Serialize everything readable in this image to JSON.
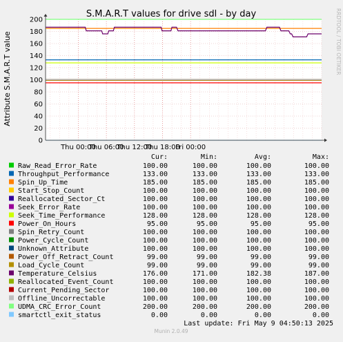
{
  "chart_data": {
    "type": "line",
    "title": "S.M.A.R.T values for drive sdl - by day",
    "ylabel": "Attribute S.M.A.R.T value",
    "side_label": "RRDTOOL / TOBI OETIKER",
    "ylim": [
      0,
      200
    ],
    "yticks": [
      "0",
      "20",
      "40",
      "60",
      "80",
      "100",
      "120",
      "140",
      "160",
      "180",
      "200"
    ],
    "xlim": [
      "Wed 17:00",
      "Fri 09:00"
    ],
    "xticks": [
      {
        "label": "Thu 00:00",
        "t": 7
      },
      {
        "label": "Thu 06:00",
        "t": 13
      },
      {
        "label": "Thu 12:00",
        "t": 19
      },
      {
        "label": "Thu 18:00",
        "t": 25
      },
      {
        "label": "Fri 00:00",
        "t": 31
      }
    ],
    "x_max": 40,
    "grid": true,
    "headers": {
      "cur": "Cur:",
      "min": "Min:",
      "avg": "Avg:",
      "max": "Max:"
    },
    "series": [
      {
        "name": "Raw_Read_Error_Rate",
        "color": "#00cc00",
        "value": 100,
        "cur": "100.00",
        "min": "100.00",
        "avg": "100.00",
        "max": "100.00"
      },
      {
        "name": "Throughput_Performance",
        "color": "#0066b3",
        "value": 133,
        "cur": "133.00",
        "min": "133.00",
        "avg": "133.00",
        "max": "133.00"
      },
      {
        "name": "Spin_Up_Time",
        "color": "#ff8000",
        "value": 185,
        "cur": "185.00",
        "min": "185.00",
        "avg": "185.00",
        "max": "185.00"
      },
      {
        "name": "Start_Stop_Count",
        "color": "#ffcc00",
        "value": 100,
        "cur": "100.00",
        "min": "100.00",
        "avg": "100.00",
        "max": "100.00"
      },
      {
        "name": "Reallocated_Sector_Ct",
        "color": "#330099",
        "value": 100,
        "cur": "100.00",
        "min": "100.00",
        "avg": "100.00",
        "max": "100.00"
      },
      {
        "name": "Seek_Error_Rate",
        "color": "#990099",
        "value": 100,
        "cur": "100.00",
        "min": "100.00",
        "avg": "100.00",
        "max": "100.00"
      },
      {
        "name": "Seek_Time_Performance",
        "color": "#ccff00",
        "value": 128,
        "cur": "128.00",
        "min": "128.00",
        "avg": "128.00",
        "max": "128.00"
      },
      {
        "name": "Power_On_Hours",
        "color": "#ff0000",
        "value": 95,
        "cur": "95.00",
        "min": "95.00",
        "avg": "95.00",
        "max": "95.00"
      },
      {
        "name": "Spin_Retry_Count",
        "color": "#808080",
        "value": 100,
        "cur": "100.00",
        "min": "100.00",
        "avg": "100.00",
        "max": "100.00"
      },
      {
        "name": "Power_Cycle_Count",
        "color": "#008f00",
        "value": 100,
        "cur": "100.00",
        "min": "100.00",
        "avg": "100.00",
        "max": "100.00"
      },
      {
        "name": "Unknown_Attribute",
        "color": "#00487d",
        "value": 100,
        "cur": "100.00",
        "min": "100.00",
        "avg": "100.00",
        "max": "100.00"
      },
      {
        "name": "Power_Off_Retract_Count",
        "color": "#b35a00",
        "value": 99,
        "cur": "99.00",
        "min": "99.00",
        "avg": "99.00",
        "max": "99.00"
      },
      {
        "name": "Load_Cycle_Count",
        "color": "#b38f00",
        "value": 99,
        "cur": "99.00",
        "min": "99.00",
        "avg": "99.00",
        "max": "99.00"
      },
      {
        "name": "Temperature_Celsius",
        "color": "#6b006b",
        "cur": "176.00",
        "min": "171.00",
        "avg": "182.38",
        "max": "187.00",
        "points": [
          [
            0,
            187
          ],
          [
            8.5,
            187
          ],
          [
            8.7,
            181
          ],
          [
            12,
            181
          ],
          [
            12.2,
            176
          ],
          [
            13.3,
            176
          ],
          [
            13.5,
            181
          ],
          [
            14.5,
            181
          ],
          [
            14.7,
            187
          ],
          [
            24.7,
            187
          ],
          [
            24.9,
            181
          ],
          [
            26.8,
            181
          ],
          [
            27,
            187
          ],
          [
            28,
            187
          ],
          [
            28.3,
            181
          ],
          [
            47,
            181
          ],
          [
            47.3,
            187
          ],
          [
            50,
            187
          ],
          [
            50.3,
            181
          ],
          [
            52,
            181
          ],
          [
            52.3,
            176
          ],
          [
            52.6,
            176
          ],
          [
            52.9,
            171
          ],
          [
            55.8,
            171
          ],
          [
            56.1,
            176
          ],
          [
            59,
            176
          ]
        ]
      },
      {
        "name": "Reallocated_Event_Count",
        "color": "#8fb300",
        "value": 100,
        "cur": "100.00",
        "min": "100.00",
        "avg": "100.00",
        "max": "100.00"
      },
      {
        "name": "Current_Pending_Sector",
        "color": "#b30000",
        "value": 100,
        "cur": "100.00",
        "min": "100.00",
        "avg": "100.00",
        "max": "100.00"
      },
      {
        "name": "Offline_Uncorrectable",
        "color": "#bebebe",
        "value": 100,
        "cur": "100.00",
        "min": "100.00",
        "avg": "100.00",
        "max": "100.00"
      },
      {
        "name": "UDMA_CRC_Error_Count",
        "color": "#80ff80",
        "value": 200,
        "cur": "200.00",
        "min": "200.00",
        "avg": "200.00",
        "max": "200.00"
      },
      {
        "name": "smartctl_exit_status",
        "color": "#80c9ff",
        "value": 0,
        "cur": "0.00",
        "min": "0.00",
        "avg": "0.00",
        "max": "0.00"
      }
    ]
  },
  "last_update": "Last update: Fri May  9 04:50:13 2025",
  "footer": "Munin 2.0.49"
}
